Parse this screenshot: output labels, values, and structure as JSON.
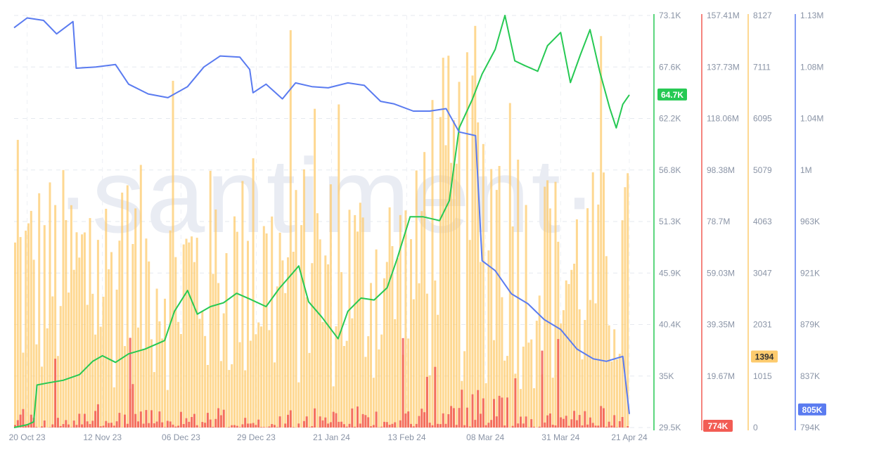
{
  "watermark": "·santiment·",
  "chart_data": {
    "type": "line",
    "grid": true,
    "x_axis": {
      "tick_labels": [
        "20 Oct 23",
        "12 Nov 23",
        "06 Dec 23",
        "29 Dec 23",
        "21 Jan 24",
        "13 Feb 24",
        "08 Mar 24",
        "31 Mar 24",
        "21 Apr 24"
      ],
      "range": [
        "2023-10-16",
        "2024-04-21"
      ]
    },
    "axes": {
      "price": {
        "color": "#26c953",
        "ticks": [
          "73.1K",
          "67.6K",
          "62.2K",
          "56.8K",
          "51.3K",
          "45.9K",
          "40.4K",
          "35K",
          "29.5K"
        ],
        "range": [
          29500,
          73100
        ],
        "current_label": "64.7K",
        "current_value": 64700
      },
      "red_volume": {
        "color": "#f25c54",
        "ticks": [
          "157.41M",
          "137.73M",
          "118.06M",
          "98.38M",
          "78.7M",
          "59.03M",
          "39.35M",
          "19.67M"
        ],
        "range": [
          0,
          157410000
        ],
        "current_label": "774K",
        "current_value": 774000
      },
      "orange_count": {
        "color": "#fdcb6e",
        "ticks": [
          "8127",
          "7111",
          "6095",
          "5079",
          "4063",
          "3047",
          "2031",
          "1015",
          "0"
        ],
        "range": [
          0,
          8127
        ],
        "current_label": "1394",
        "current_value": 1394
      },
      "blue_supply": {
        "color": "#5a7bf0",
        "ticks": [
          "1.13M",
          "1.08M",
          "1.04M",
          "1M",
          "963K",
          "921K",
          "879K",
          "837K",
          "794K"
        ],
        "range": [
          794000,
          1130000
        ],
        "current_label": "805K",
        "current_value": 805000
      }
    },
    "series": [
      {
        "axis": "price",
        "color": "#26c953",
        "points": [
          [
            "2023-10-16",
            29500
          ],
          [
            "2023-10-20",
            29800
          ],
          [
            "2023-10-22",
            30100
          ],
          [
            "2023-10-23",
            34000
          ],
          [
            "2023-10-26",
            34200
          ],
          [
            "2023-10-31",
            34500
          ],
          [
            "2023-11-05",
            35100
          ],
          [
            "2023-11-09",
            36500
          ],
          [
            "2023-11-12",
            37100
          ],
          [
            "2023-11-16",
            36400
          ],
          [
            "2023-11-20",
            37300
          ],
          [
            "2023-11-25",
            37800
          ],
          [
            "2023-12-01",
            38700
          ],
          [
            "2023-12-04",
            41800
          ],
          [
            "2023-12-08",
            44000
          ],
          [
            "2023-12-11",
            41500
          ],
          [
            "2023-12-15",
            42300
          ],
          [
            "2023-12-19",
            42700
          ],
          [
            "2023-12-23",
            43700
          ],
          [
            "2023-12-27",
            43100
          ],
          [
            "2024-01-01",
            42300
          ],
          [
            "2024-01-05",
            44200
          ],
          [
            "2024-01-08",
            45400
          ],
          [
            "2024-01-11",
            46600
          ],
          [
            "2024-01-14",
            42800
          ],
          [
            "2024-01-18",
            41200
          ],
          [
            "2024-01-23",
            38900
          ],
          [
            "2024-01-26",
            41800
          ],
          [
            "2024-01-30",
            43200
          ],
          [
            "2024-02-03",
            43000
          ],
          [
            "2024-02-07",
            44300
          ],
          [
            "2024-02-10",
            47300
          ],
          [
            "2024-02-14",
            51800
          ],
          [
            "2024-02-18",
            51800
          ],
          [
            "2024-02-23",
            51400
          ],
          [
            "2024-02-26",
            53500
          ],
          [
            "2024-02-29",
            61200
          ],
          [
            "2024-03-04",
            64200
          ],
          [
            "2024-03-07",
            66900
          ],
          [
            "2024-03-11",
            69500
          ],
          [
            "2024-03-14",
            73100
          ],
          [
            "2024-03-17",
            68300
          ],
          [
            "2024-03-20",
            67800
          ],
          [
            "2024-03-24",
            67200
          ],
          [
            "2024-03-27",
            69900
          ],
          [
            "2024-03-31",
            71300
          ],
          [
            "2024-04-03",
            66000
          ],
          [
            "2024-04-06",
            68900
          ],
          [
            "2024-04-09",
            71600
          ],
          [
            "2024-04-12",
            67100
          ],
          [
            "2024-04-15",
            63300
          ],
          [
            "2024-04-17",
            61200
          ],
          [
            "2024-04-19",
            63700
          ],
          [
            "2024-04-21",
            64700
          ]
        ]
      },
      {
        "axis": "blue_supply",
        "color": "#5a7bf0",
        "points": [
          [
            "2023-10-16",
            1120000
          ],
          [
            "2023-10-20",
            1128000
          ],
          [
            "2023-10-25",
            1126000
          ],
          [
            "2023-10-29",
            1115000
          ],
          [
            "2023-11-03",
            1125000
          ],
          [
            "2023-11-04",
            1087000
          ],
          [
            "2023-11-10",
            1088000
          ],
          [
            "2023-11-16",
            1090000
          ],
          [
            "2023-11-20",
            1074000
          ],
          [
            "2023-11-26",
            1066000
          ],
          [
            "2023-12-02",
            1063000
          ],
          [
            "2023-12-08",
            1072000
          ],
          [
            "2023-12-13",
            1088000
          ],
          [
            "2023-12-18",
            1097000
          ],
          [
            "2023-12-24",
            1096000
          ],
          [
            "2023-12-27",
            1086000
          ],
          [
            "2023-12-28",
            1067000
          ],
          [
            "2024-01-01",
            1074000
          ],
          [
            "2024-01-06",
            1062000
          ],
          [
            "2024-01-10",
            1075000
          ],
          [
            "2024-01-15",
            1072000
          ],
          [
            "2024-01-20",
            1071000
          ],
          [
            "2024-01-26",
            1075000
          ],
          [
            "2024-01-31",
            1073000
          ],
          [
            "2024-02-05",
            1060000
          ],
          [
            "2024-02-09",
            1058000
          ],
          [
            "2024-02-15",
            1052000
          ],
          [
            "2024-02-20",
            1052000
          ],
          [
            "2024-02-25",
            1054000
          ],
          [
            "2024-02-29",
            1035000
          ],
          [
            "2024-03-05",
            1032000
          ],
          [
            "2024-03-07",
            930000
          ],
          [
            "2024-03-11",
            922000
          ],
          [
            "2024-03-16",
            903000
          ],
          [
            "2024-03-21",
            895000
          ],
          [
            "2024-03-26",
            882000
          ],
          [
            "2024-03-31",
            874000
          ],
          [
            "2024-04-05",
            858000
          ],
          [
            "2024-04-10",
            850000
          ],
          [
            "2024-04-14",
            848000
          ],
          [
            "2024-04-19",
            852000
          ],
          [
            "2024-04-21",
            805000
          ]
        ]
      }
    ],
    "bar_series": [
      {
        "axis": "orange_count",
        "color": "#fdcb6e",
        "typical_range": [
          700,
          5200
        ],
        "peak": 8127
      },
      {
        "axis": "red_volume",
        "color": "#f25c54",
        "typical_range": [
          0,
          30000000
        ],
        "peak": 35000000
      }
    ]
  }
}
